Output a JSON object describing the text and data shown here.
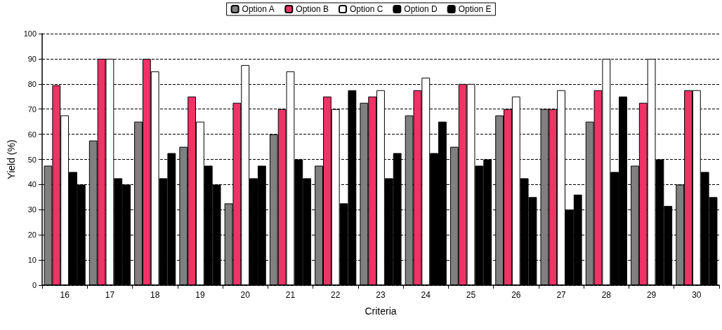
{
  "chart_data": {
    "type": "bar",
    "xlabel": "Criteria",
    "ylabel": "Yield (%)",
    "categories": [
      "16",
      "17",
      "18",
      "19",
      "20",
      "21",
      "22",
      "23",
      "24",
      "25",
      "26",
      "27",
      "28",
      "29",
      "30"
    ],
    "series": [
      {
        "name": "Option A",
        "color": "#808080",
        "values": [
          47.5,
          57.5,
          65,
          55,
          32.5,
          60,
          47.5,
          72.5,
          67.5,
          55,
          67.5,
          70,
          65,
          47.5,
          40
        ]
      },
      {
        "name": "Option B",
        "color": "#ee3366",
        "values": [
          79.5,
          90,
          90,
          75,
          72.5,
          70,
          75,
          75,
          77.5,
          80,
          70,
          70,
          77.5,
          72.5,
          77.5
        ]
      },
      {
        "name": "Option C",
        "color": "#ffffff",
        "values": [
          67.5,
          90,
          85,
          65,
          87.5,
          85,
          70,
          77.5,
          82.5,
          80,
          75,
          77.5,
          90,
          90,
          77.5
        ]
      },
      {
        "name": "Option D",
        "color": "#000000",
        "values": [
          45,
          42.5,
          42.5,
          47.5,
          42.5,
          50,
          32.5,
          42.5,
          52.5,
          47.5,
          42.5,
          30,
          45,
          50,
          45
        ]
      },
      {
        "name": "Option E",
        "color": "#000000",
        "values": [
          40,
          40,
          52.5,
          40,
          47.5,
          42.5,
          77.5,
          52.5,
          65,
          50,
          35,
          36,
          75,
          31.5,
          35
        ]
      }
    ],
    "ylim": [
      0,
      100
    ],
    "yticks": [
      0,
      10,
      20,
      30,
      40,
      50,
      60,
      70,
      80,
      90,
      100
    ],
    "grid": "y",
    "legend": "top"
  }
}
